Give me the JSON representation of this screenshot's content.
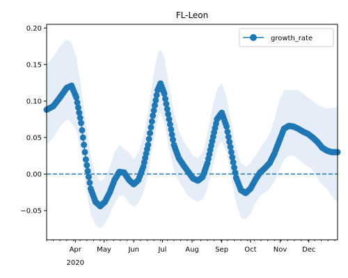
{
  "chart_data": {
    "type": "line",
    "title": "FL-Leon",
    "xlabel": "",
    "ylabel": "",
    "x_axis": {
      "type": "date",
      "range": [
        "2020-03-02",
        "2020-12-31"
      ],
      "month_ticks": [
        {
          "date": "2020-04-01",
          "label": "Apr"
        },
        {
          "date": "2020-05-01",
          "label": "May"
        },
        {
          "date": "2020-06-01",
          "label": "Jun"
        },
        {
          "date": "2020-07-01",
          "label": "Jul"
        },
        {
          "date": "2020-08-01",
          "label": "Aug"
        },
        {
          "date": "2020-09-01",
          "label": "Sep"
        },
        {
          "date": "2020-10-01",
          "label": "Oct"
        },
        {
          "date": "2020-11-01",
          "label": "Nov"
        },
        {
          "date": "2020-12-01",
          "label": "Dec"
        }
      ],
      "year_label": "2020",
      "minor_ticks": "weekly"
    },
    "y_axis": {
      "range": [
        -0.09,
        0.205
      ],
      "ticks": [
        -0.05,
        0.0,
        0.05,
        0.1,
        0.15,
        0.2
      ],
      "tick_labels": [
        "−0.05",
        "0.00",
        "0.05",
        "0.10",
        "0.15",
        "0.20"
      ]
    },
    "grid": false,
    "legend": {
      "position": "top-right",
      "entries": [
        "growth_rate"
      ]
    },
    "reference_line": {
      "y": 0.0,
      "style": "dashed",
      "color": "#1f77b4"
    },
    "series": [
      {
        "name": "growth_rate",
        "color": "#1f77b4",
        "marker": "circle",
        "band_color": "#dce8f5",
        "points": [
          {
            "x": "2020-03-02",
            "y": 0.088,
            "lo": 0.04,
            "hi": 0.15
          },
          {
            "x": "2020-03-09",
            "y": 0.093,
            "lo": 0.05,
            "hi": 0.16
          },
          {
            "x": "2020-03-16",
            "y": 0.105,
            "lo": 0.065,
            "hi": 0.175
          },
          {
            "x": "2020-03-23",
            "y": 0.118,
            "lo": 0.075,
            "hi": 0.185
          },
          {
            "x": "2020-03-28",
            "y": 0.121,
            "lo": 0.07,
            "hi": 0.18
          },
          {
            "x": "2020-04-02",
            "y": 0.105,
            "lo": 0.06,
            "hi": 0.16
          },
          {
            "x": "2020-04-07",
            "y": 0.07,
            "lo": 0.03,
            "hi": 0.12
          },
          {
            "x": "2020-04-12",
            "y": 0.02,
            "lo": -0.02,
            "hi": 0.07
          },
          {
            "x": "2020-04-17",
            "y": -0.02,
            "lo": -0.055,
            "hi": 0.025
          },
          {
            "x": "2020-04-22",
            "y": -0.038,
            "lo": -0.07,
            "hi": 0.0
          },
          {
            "x": "2020-04-27",
            "y": -0.044,
            "lo": -0.075,
            "hi": -0.01
          },
          {
            "x": "2020-05-02",
            "y": -0.038,
            "lo": -0.068,
            "hi": -0.005
          },
          {
            "x": "2020-05-07",
            "y": -0.025,
            "lo": -0.055,
            "hi": 0.01
          },
          {
            "x": "2020-05-12",
            "y": -0.008,
            "lo": -0.04,
            "hi": 0.03
          },
          {
            "x": "2020-05-17",
            "y": 0.003,
            "lo": -0.03,
            "hi": 0.04
          },
          {
            "x": "2020-05-22",
            "y": 0.002,
            "lo": -0.03,
            "hi": 0.035
          },
          {
            "x": "2020-05-27",
            "y": -0.008,
            "lo": -0.04,
            "hi": 0.03
          },
          {
            "x": "2020-06-01",
            "y": -0.014,
            "lo": -0.045,
            "hi": 0.02
          },
          {
            "x": "2020-06-06",
            "y": -0.008,
            "lo": -0.04,
            "hi": 0.03
          },
          {
            "x": "2020-06-11",
            "y": 0.01,
            "lo": -0.025,
            "hi": 0.05
          },
          {
            "x": "2020-06-16",
            "y": 0.04,
            "lo": 0.0,
            "hi": 0.085
          },
          {
            "x": "2020-06-21",
            "y": 0.08,
            "lo": 0.04,
            "hi": 0.13
          },
          {
            "x": "2020-06-26",
            "y": 0.115,
            "lo": 0.075,
            "hi": 0.165
          },
          {
            "x": "2020-06-29",
            "y": 0.124,
            "lo": 0.085,
            "hi": 0.17
          },
          {
            "x": "2020-07-03",
            "y": 0.11,
            "lo": 0.07,
            "hi": 0.16
          },
          {
            "x": "2020-07-08",
            "y": 0.075,
            "lo": 0.035,
            "hi": 0.12
          },
          {
            "x": "2020-07-13",
            "y": 0.04,
            "lo": 0.005,
            "hi": 0.085
          },
          {
            "x": "2020-07-18",
            "y": 0.022,
            "lo": -0.01,
            "hi": 0.06
          },
          {
            "x": "2020-07-23",
            "y": 0.012,
            "lo": -0.02,
            "hi": 0.045
          },
          {
            "x": "2020-07-28",
            "y": 0.003,
            "lo": -0.03,
            "hi": 0.035
          },
          {
            "x": "2020-08-02",
            "y": -0.006,
            "lo": -0.035,
            "hi": 0.025
          },
          {
            "x": "2020-08-07",
            "y": -0.009,
            "lo": -0.038,
            "hi": 0.022
          },
          {
            "x": "2020-08-12",
            "y": -0.004,
            "lo": -0.035,
            "hi": 0.03
          },
          {
            "x": "2020-08-17",
            "y": 0.015,
            "lo": -0.02,
            "hi": 0.055
          },
          {
            "x": "2020-08-22",
            "y": 0.045,
            "lo": 0.005,
            "hi": 0.09
          },
          {
            "x": "2020-08-27",
            "y": 0.075,
            "lo": 0.035,
            "hi": 0.115
          },
          {
            "x": "2020-09-01",
            "y": 0.084,
            "lo": 0.045,
            "hi": 0.125
          },
          {
            "x": "2020-09-06",
            "y": 0.065,
            "lo": 0.03,
            "hi": 0.105
          },
          {
            "x": "2020-09-11",
            "y": 0.03,
            "lo": -0.005,
            "hi": 0.07
          },
          {
            "x": "2020-09-16",
            "y": -0.005,
            "lo": -0.04,
            "hi": 0.035
          },
          {
            "x": "2020-09-21",
            "y": -0.022,
            "lo": -0.06,
            "hi": 0.015
          },
          {
            "x": "2020-09-26",
            "y": -0.026,
            "lo": -0.062,
            "hi": 0.01
          },
          {
            "x": "2020-10-01",
            "y": -0.02,
            "lo": -0.055,
            "hi": 0.015
          },
          {
            "x": "2020-10-06",
            "y": -0.008,
            "lo": -0.04,
            "hi": 0.025
          },
          {
            "x": "2020-10-11",
            "y": 0.002,
            "lo": -0.03,
            "hi": 0.035
          },
          {
            "x": "2020-10-16",
            "y": 0.008,
            "lo": -0.025,
            "hi": 0.045
          },
          {
            "x": "2020-10-21",
            "y": 0.015,
            "lo": -0.02,
            "hi": 0.055
          },
          {
            "x": "2020-10-26",
            "y": 0.028,
            "lo": -0.01,
            "hi": 0.075
          },
          {
            "x": "2020-10-31",
            "y": 0.045,
            "lo": 0.005,
            "hi": 0.1
          },
          {
            "x": "2020-11-05",
            "y": 0.062,
            "lo": 0.02,
            "hi": 0.115
          },
          {
            "x": "2020-11-10",
            "y": 0.066,
            "lo": 0.025,
            "hi": 0.115
          },
          {
            "x": "2020-11-15",
            "y": 0.065,
            "lo": 0.025,
            "hi": 0.115
          },
          {
            "x": "2020-11-20",
            "y": 0.062,
            "lo": 0.02,
            "hi": 0.115
          },
          {
            "x": "2020-11-25",
            "y": 0.058,
            "lo": 0.015,
            "hi": 0.11
          },
          {
            "x": "2020-11-30",
            "y": 0.055,
            "lo": 0.01,
            "hi": 0.105
          },
          {
            "x": "2020-12-05",
            "y": 0.05,
            "lo": 0.005,
            "hi": 0.1
          },
          {
            "x": "2020-12-10",
            "y": 0.044,
            "lo": -0.005,
            "hi": 0.095
          },
          {
            "x": "2020-12-15",
            "y": 0.036,
            "lo": -0.015,
            "hi": 0.092
          },
          {
            "x": "2020-12-20",
            "y": 0.032,
            "lo": -0.02,
            "hi": 0.09
          },
          {
            "x": "2020-12-25",
            "y": 0.03,
            "lo": -0.03,
            "hi": 0.09
          },
          {
            "x": "2020-12-31",
            "y": 0.03,
            "lo": -0.04,
            "hi": 0.092
          }
        ]
      }
    ]
  }
}
